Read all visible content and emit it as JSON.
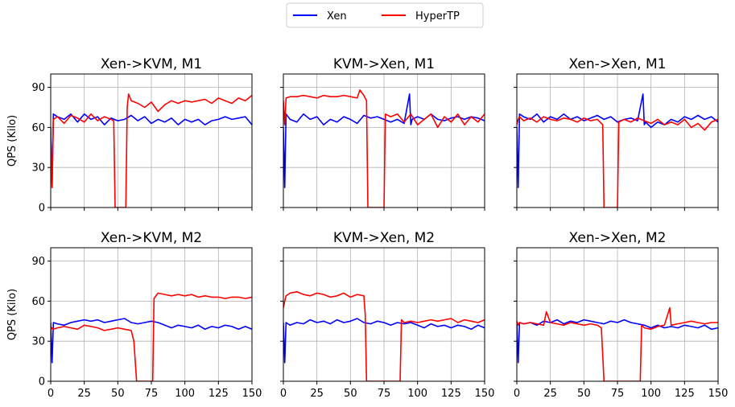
{
  "legend": {
    "placement": "top-center",
    "entries": [
      {
        "label": "Xen",
        "color": "#0000ff"
      },
      {
        "label": "HyperTP",
        "color": "#ff0000"
      }
    ]
  },
  "chart_data": [
    {
      "type": "line",
      "title": "Xen->KVM, M1",
      "ylabel": "QPS (Kilo)",
      "xlim": [
        0,
        150
      ],
      "ylim": [
        0,
        100
      ],
      "xticks": [
        0,
        25,
        50,
        75,
        100,
        125,
        150
      ],
      "yticks": [
        0,
        30,
        60,
        90
      ],
      "grid": true,
      "series": [
        {
          "name": "Xen",
          "color": "#0000ff",
          "x": [
            0,
            1,
            2,
            5,
            10,
            15,
            20,
            25,
            30,
            35,
            40,
            45,
            50,
            55,
            60,
            65,
            70,
            75,
            80,
            85,
            90,
            95,
            100,
            105,
            110,
            115,
            120,
            125,
            130,
            135,
            140,
            145,
            150
          ],
          "y": [
            60,
            15,
            70,
            68,
            66,
            70,
            64,
            70,
            66,
            68,
            62,
            67,
            65,
            66,
            69,
            65,
            68,
            63,
            66,
            64,
            67,
            62,
            66,
            64,
            66,
            62,
            65,
            66,
            68,
            66,
            67,
            68,
            62
          ]
        },
        {
          "name": "HyperTP",
          "color": "#ff0000",
          "x": [
            0,
            1,
            2,
            5,
            10,
            15,
            20,
            25,
            30,
            35,
            40,
            45,
            47,
            48,
            56,
            57,
            58,
            60,
            65,
            70,
            75,
            80,
            85,
            90,
            95,
            100,
            105,
            110,
            115,
            120,
            125,
            130,
            135,
            140,
            145,
            150
          ],
          "y": [
            55,
            15,
            66,
            68,
            63,
            69,
            67,
            64,
            70,
            65,
            68,
            66,
            65,
            0,
            0,
            75,
            85,
            80,
            78,
            75,
            79,
            72,
            77,
            80,
            78,
            80,
            79,
            80,
            81,
            78,
            82,
            80,
            78,
            82,
            80,
            84
          ]
        }
      ]
    },
    {
      "type": "line",
      "title": "KVM->Xen, M1",
      "ylabel": "",
      "xlim": [
        0,
        150
      ],
      "ylim": [
        0,
        100
      ],
      "xticks": [
        0,
        25,
        50,
        75,
        100,
        125,
        150
      ],
      "yticks": [
        0,
        30,
        60,
        90
      ],
      "grid": true,
      "series": [
        {
          "name": "Xen",
          "color": "#0000ff",
          "x": [
            0,
            1,
            2,
            5,
            10,
            15,
            20,
            25,
            30,
            35,
            40,
            45,
            50,
            55,
            60,
            65,
            70,
            75,
            80,
            85,
            90,
            94,
            95,
            96,
            100,
            105,
            110,
            115,
            120,
            125,
            130,
            135,
            140,
            145,
            150
          ],
          "y": [
            60,
            15,
            70,
            66,
            64,
            70,
            66,
            68,
            62,
            66,
            64,
            68,
            66,
            63,
            69,
            67,
            68,
            66,
            64,
            66,
            63,
            85,
            62,
            66,
            68,
            66,
            70,
            66,
            65,
            67,
            68,
            66,
            68,
            67,
            65
          ]
        },
        {
          "name": "HyperTP",
          "color": "#ff0000",
          "x": [
            0,
            1,
            2,
            5,
            10,
            15,
            20,
            25,
            30,
            35,
            40,
            45,
            50,
            55,
            57,
            60,
            62,
            63,
            75,
            76,
            80,
            85,
            90,
            95,
            100,
            105,
            110,
            115,
            120,
            125,
            130,
            135,
            140,
            145,
            150
          ],
          "y": [
            80,
            62,
            82,
            83,
            83,
            84,
            83,
            82,
            84,
            83,
            83,
            84,
            83,
            82,
            88,
            84,
            80,
            0,
            0,
            70,
            68,
            70,
            64,
            70,
            62,
            66,
            70,
            60,
            68,
            64,
            70,
            62,
            68,
            64,
            70
          ]
        }
      ]
    },
    {
      "type": "line",
      "title": "Xen->Xen, M1",
      "ylabel": "",
      "xlim": [
        0,
        150
      ],
      "ylim": [
        0,
        100
      ],
      "xticks": [
        0,
        25,
        50,
        75,
        100,
        125,
        150
      ],
      "yticks": [
        0,
        30,
        60,
        90
      ],
      "grid": true,
      "series": [
        {
          "name": "Xen",
          "color": "#0000ff",
          "x": [
            0,
            1,
            2,
            5,
            10,
            15,
            20,
            25,
            30,
            35,
            40,
            45,
            50,
            55,
            60,
            65,
            70,
            75,
            80,
            85,
            90,
            94,
            95,
            96,
            100,
            105,
            110,
            115,
            120,
            125,
            130,
            135,
            140,
            145,
            150
          ],
          "y": [
            60,
            15,
            70,
            68,
            66,
            70,
            64,
            68,
            66,
            70,
            66,
            68,
            65,
            67,
            69,
            66,
            68,
            64,
            66,
            67,
            65,
            85,
            62,
            64,
            60,
            64,
            62,
            66,
            64,
            68,
            66,
            69,
            66,
            68,
            64
          ]
        },
        {
          "name": "HyperTP",
          "color": "#ff0000",
          "x": [
            0,
            1,
            2,
            5,
            10,
            15,
            20,
            25,
            30,
            35,
            40,
            45,
            50,
            55,
            60,
            64,
            65,
            75,
            76,
            80,
            85,
            90,
            95,
            100,
            105,
            110,
            115,
            120,
            125,
            130,
            135,
            140,
            145,
            150
          ],
          "y": [
            62,
            66,
            68,
            65,
            67,
            64,
            68,
            66,
            65,
            67,
            66,
            64,
            67,
            65,
            66,
            62,
            0,
            0,
            64,
            66,
            64,
            67,
            65,
            63,
            66,
            62,
            64,
            62,
            66,
            60,
            63,
            58,
            64,
            66
          ]
        }
      ]
    },
    {
      "type": "line",
      "title": "Xen->KVM, M2",
      "ylabel": "QPS (Kilo)",
      "xlim": [
        0,
        150
      ],
      "ylim": [
        0,
        100
      ],
      "xticks": [
        0,
        25,
        50,
        75,
        100,
        125,
        150
      ],
      "yticks": [
        0,
        30,
        60,
        90
      ],
      "grid": true,
      "series": [
        {
          "name": "Xen",
          "color": "#0000ff",
          "x": [
            0,
            1,
            2,
            5,
            10,
            15,
            20,
            25,
            30,
            35,
            40,
            45,
            50,
            55,
            60,
            65,
            70,
            75,
            80,
            85,
            90,
            95,
            100,
            105,
            110,
            115,
            120,
            125,
            130,
            135,
            140,
            145,
            150
          ],
          "y": [
            44,
            14,
            44,
            43,
            42,
            44,
            45,
            46,
            45,
            46,
            44,
            45,
            46,
            47,
            44,
            43,
            44,
            45,
            44,
            42,
            40,
            42,
            41,
            40,
            42,
            39,
            41,
            40,
            42,
            41,
            39,
            41,
            39
          ]
        },
        {
          "name": "HyperTP",
          "color": "#ff0000",
          "x": [
            0,
            1,
            2,
            5,
            10,
            15,
            20,
            25,
            30,
            35,
            40,
            45,
            50,
            55,
            60,
            62,
            64,
            76,
            77,
            80,
            85,
            90,
            95,
            100,
            105,
            110,
            115,
            120,
            125,
            130,
            135,
            140,
            145,
            150
          ],
          "y": [
            38,
            40,
            39,
            40,
            41,
            40,
            39,
            42,
            41,
            40,
            38,
            39,
            40,
            39,
            38,
            30,
            0,
            0,
            62,
            66,
            65,
            64,
            65,
            64,
            65,
            63,
            64,
            63,
            63,
            62,
            63,
            63,
            62,
            63
          ]
        }
      ]
    },
    {
      "type": "line",
      "title": "KVM->Xen, M2",
      "ylabel": "",
      "xlim": [
        0,
        150
      ],
      "ylim": [
        0,
        100
      ],
      "xticks": [
        0,
        25,
        50,
        75,
        100,
        125,
        150
      ],
      "yticks": [
        0,
        30,
        60,
        90
      ],
      "grid": true,
      "series": [
        {
          "name": "Xen",
          "color": "#0000ff",
          "x": [
            0,
            1,
            2,
            5,
            10,
            15,
            20,
            25,
            30,
            35,
            40,
            45,
            50,
            55,
            60,
            65,
            70,
            75,
            80,
            85,
            90,
            95,
            100,
            105,
            110,
            115,
            120,
            125,
            130,
            135,
            140,
            145,
            150
          ],
          "y": [
            44,
            14,
            44,
            42,
            44,
            43,
            46,
            44,
            45,
            43,
            46,
            44,
            45,
            47,
            44,
            43,
            45,
            44,
            42,
            44,
            43,
            44,
            42,
            40,
            43,
            41,
            42,
            40,
            42,
            41,
            39,
            42,
            40
          ]
        },
        {
          "name": "HyperTP",
          "color": "#ff0000",
          "x": [
            0,
            1,
            2,
            5,
            10,
            15,
            20,
            25,
            30,
            35,
            40,
            45,
            50,
            55,
            60,
            61,
            62,
            87,
            88,
            90,
            95,
            100,
            105,
            110,
            115,
            120,
            125,
            130,
            135,
            140,
            145,
            150
          ],
          "y": [
            55,
            60,
            64,
            66,
            67,
            65,
            64,
            66,
            65,
            63,
            64,
            66,
            63,
            65,
            64,
            50,
            0,
            0,
            46,
            44,
            45,
            44,
            45,
            46,
            45,
            46,
            47,
            44,
            46,
            45,
            44,
            46
          ]
        }
      ]
    },
    {
      "type": "line",
      "title": "Xen->Xen, M2",
      "ylabel": "",
      "xlim": [
        0,
        150
      ],
      "ylim": [
        0,
        100
      ],
      "xticks": [
        0,
        25,
        50,
        75,
        100,
        125,
        150
      ],
      "yticks": [
        0,
        30,
        60,
        90
      ],
      "grid": true,
      "series": [
        {
          "name": "Xen",
          "color": "#0000ff",
          "x": [
            0,
            1,
            2,
            5,
            10,
            15,
            20,
            25,
            30,
            35,
            40,
            45,
            50,
            55,
            60,
            65,
            70,
            75,
            80,
            85,
            90,
            95,
            100,
            105,
            110,
            115,
            120,
            125,
            130,
            135,
            140,
            145,
            150
          ],
          "y": [
            44,
            14,
            44,
            43,
            44,
            42,
            45,
            44,
            46,
            43,
            45,
            44,
            46,
            45,
            44,
            43,
            45,
            44,
            46,
            44,
            43,
            42,
            40,
            42,
            40,
            41,
            40,
            42,
            41,
            40,
            42,
            39,
            40
          ]
        },
        {
          "name": "HyperTP",
          "color": "#ff0000",
          "x": [
            0,
            1,
            2,
            5,
            10,
            15,
            20,
            22,
            25,
            30,
            35,
            40,
            45,
            50,
            55,
            60,
            63,
            65,
            92,
            93,
            95,
            100,
            105,
            110,
            114,
            115,
            120,
            125,
            130,
            135,
            140,
            145,
            150
          ],
          "y": [
            45,
            42,
            44,
            43,
            44,
            43,
            42,
            52,
            44,
            43,
            42,
            44,
            43,
            42,
            43,
            42,
            40,
            0,
            0,
            42,
            40,
            39,
            41,
            42,
            55,
            42,
            43,
            44,
            45,
            44,
            43,
            44,
            44
          ]
        }
      ]
    }
  ]
}
